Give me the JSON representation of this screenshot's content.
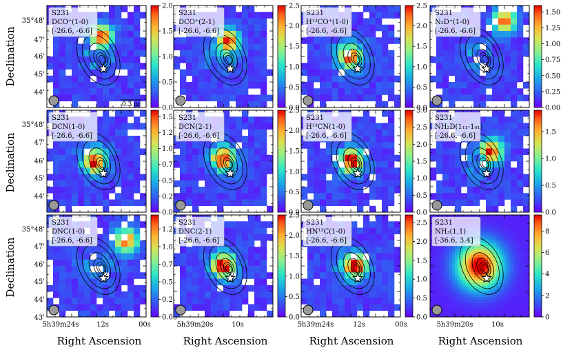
{
  "figure": {
    "ylabel": "Declination",
    "xlabel": "Right Ascension",
    "scalebar_label": "0.3 pc",
    "dec_ticks": [
      "35°48'",
      "47'",
      "46'",
      "45'",
      "44'",
      "43'"
    ],
    "ra_ticks": {
      "col0": [
        "5h39m24s",
        "12s",
        "00s"
      ],
      "col1": [
        "5h39m20s",
        "10s"
      ],
      "col2": [
        "5h39m24s",
        "12s",
        "00s"
      ],
      "col3": [
        "5h39m20s",
        "10s"
      ]
    }
  },
  "chart_data": [
    {
      "type": "heatmap",
      "source": "S231",
      "line": "DCO⁺(1-0)",
      "velocity_range": "[-26.6, -6.6]",
      "vmin": 0.0,
      "vmax": 2.0,
      "cbar_ticks": [
        0.0,
        0.5,
        1.0,
        1.5,
        2.0
      ],
      "cbar_labels": [
        "0.0",
        "0.5",
        "1.0",
        "1.5",
        "2.0"
      ],
      "hotspot": [
        0.55,
        0.3
      ]
    },
    {
      "type": "heatmap",
      "source": "S231",
      "line": "DCO⁺(2-1)",
      "velocity_range": "[-26.6, -6.6]",
      "vmin": 0.0,
      "vmax": 2.5,
      "cbar_ticks": [
        0.0,
        0.5,
        1.0,
        1.5,
        2.0,
        2.5
      ],
      "cbar_labels": [
        "0.0",
        "0.5",
        "1.0",
        "1.5",
        "2.0",
        "2.5"
      ],
      "hotspot": [
        0.55,
        0.35
      ]
    },
    {
      "type": "heatmap",
      "source": "S231",
      "line": "H¹³CO⁺(1-0)",
      "velocity_range": "[-26.6, -6.6]",
      "vmin": 0.0,
      "vmax": 2.5,
      "cbar_ticks": [
        0.0,
        0.5,
        1.0,
        1.5,
        2.0,
        2.5
      ],
      "cbar_labels": [
        "0.0",
        "0.5",
        "1.0",
        "1.5",
        "2.0",
        "2.5"
      ],
      "hotspot": [
        0.5,
        0.5
      ]
    },
    {
      "type": "heatmap",
      "source": "S231",
      "line": "N₂D⁺(1-0)",
      "velocity_range": "[-26.6, -6.6]",
      "vmin": 0.0,
      "vmax": 1.6,
      "cbar_ticks": [
        0.0,
        0.25,
        0.5,
        0.75,
        1.0,
        1.25,
        1.5
      ],
      "cbar_labels": [
        "0.00",
        "0.25",
        "0.50",
        "0.75",
        "1.00",
        "1.25",
        "1.50"
      ],
      "hotspot": [
        0.75,
        0.15
      ]
    },
    {
      "type": "heatmap",
      "source": "S231",
      "line": "DCN(1-0)",
      "velocity_range": "[-26.6, -6.6]",
      "vmin": 0.0,
      "vmax": 1.6,
      "cbar_ticks": [
        0.0,
        0.25,
        0.5,
        0.75,
        1.0,
        1.25,
        1.5
      ],
      "cbar_labels": [
        "0.00",
        "0.25",
        "0.50",
        "0.75",
        "1.00",
        "1.25",
        "1.50"
      ],
      "hotspot": [
        0.48,
        0.5
      ]
    },
    {
      "type": "heatmap",
      "source": "S231",
      "line": "DCN(2-1)",
      "velocity_range": "[-26.6, -6.6]",
      "vmin": 0.0,
      "vmax": 2.5,
      "cbar_ticks": [
        0.0,
        0.5,
        1.0,
        1.5,
        2.0,
        2.5
      ],
      "cbar_labels": [
        "0.0",
        "0.5",
        "1.0",
        "1.5",
        "2.0",
        "2.5"
      ],
      "hotspot": [
        0.5,
        0.47
      ]
    },
    {
      "type": "heatmap",
      "source": "S231",
      "line": "H¹³CN(1-0)",
      "velocity_range": "[-26.6, -6.6]",
      "vmin": 0.0,
      "vmax": 3.0,
      "cbar_ticks": [
        0.0,
        0.5,
        1.0,
        1.5,
        2.0,
        2.5,
        3.0
      ],
      "cbar_labels": [
        "0.0",
        "0.5",
        "1.0",
        "1.5",
        "2.0",
        "2.5",
        "3.0"
      ],
      "hotspot": [
        0.5,
        0.5
      ]
    },
    {
      "type": "heatmap",
      "source": "S231",
      "line": "NH₂D(1₁₁-1₀₁)",
      "velocity_range": "[-26.6, -6.6]",
      "vmin": 0.0,
      "vmax": 1.9,
      "cbar_ticks": [
        0.0,
        0.5,
        1.0,
        1.5
      ],
      "cbar_labels": [
        "0.0",
        "0.5",
        "1.0",
        "1.5"
      ],
      "hotspot": [
        0.62,
        0.4
      ]
    },
    {
      "type": "heatmap",
      "source": "S231",
      "line": "DNC(1-0)",
      "velocity_range": "[-26.6, -6.6]",
      "vmin": 0.0,
      "vmax": 1.45,
      "cbar_ticks": [
        0.0,
        0.25,
        0.5,
        0.75,
        1.0,
        1.25
      ],
      "cbar_labels": [
        "0.00",
        "0.25",
        "0.50",
        "0.75",
        "1.00",
        "1.25"
      ],
      "hotspot": [
        0.8,
        0.25
      ]
    },
    {
      "type": "heatmap",
      "source": "S231",
      "line": "DNC(2-1)",
      "velocity_range": "[-26.6, -6.6]",
      "vmin": 0.0,
      "vmax": 2.5,
      "cbar_ticks": [
        0.0,
        0.5,
        1.0,
        1.5,
        2.0,
        2.5
      ],
      "cbar_labels": [
        "0.0",
        "0.5",
        "1.0",
        "1.5",
        "2.0",
        "2.5"
      ],
      "hotspot": [
        0.5,
        0.5
      ]
    },
    {
      "type": "heatmap",
      "source": "S231",
      "line": "HN¹³C(1-0)",
      "velocity_range": "[-26.6, -6.6]",
      "vmin": 0.0,
      "vmax": 2.7,
      "cbar_ticks": [
        0.0,
        0.5,
        1.0,
        1.5,
        2.0,
        2.5
      ],
      "cbar_labels": [
        "0.0",
        "0.5",
        "1.0",
        "1.5",
        "2.0",
        "2.5"
      ],
      "hotspot": [
        0.55,
        0.5
      ]
    },
    {
      "type": "heatmap",
      "source": "S231",
      "line": "NH₃(1,1)",
      "velocity_range": "[-36.6, 3.4]",
      "vmin": 0.0,
      "vmax": 9.5,
      "cbar_ticks": [
        0,
        2,
        4,
        6,
        8
      ],
      "cbar_labels": [
        "0",
        "2",
        "4",
        "6",
        "8"
      ],
      "hotspot": [
        0.5,
        0.5
      ],
      "smooth": true
    }
  ]
}
